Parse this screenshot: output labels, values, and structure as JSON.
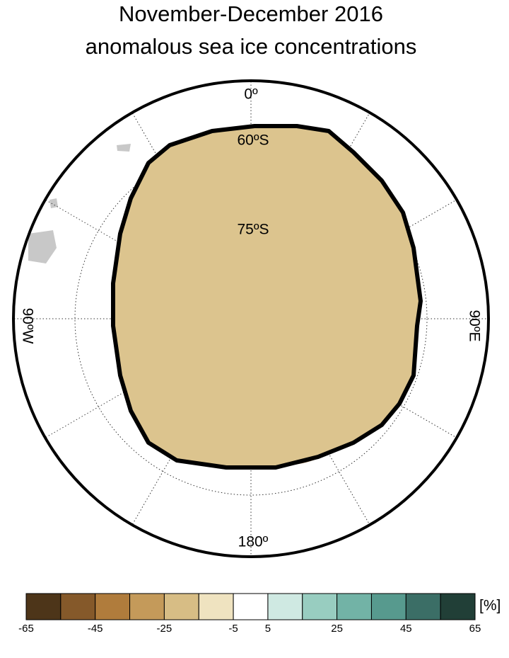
{
  "title": [
    "November-December 2016",
    "anomalous sea ice concentrations"
  ],
  "map": {
    "labels": {
      "lon_0": "0º",
      "lat_60": "60ºS",
      "lat_75": "75ºS",
      "lon_90w": "90ºW",
      "lon_90e": "90ºE",
      "lon_180": "180º"
    }
  },
  "colorbar": {
    "unit": "[%]",
    "levels": [
      -65,
      -55,
      -45,
      -35,
      -25,
      -15,
      -5,
      5,
      15,
      25,
      35,
      45,
      55,
      65
    ],
    "colors": [
      "#4d3519",
      "#85592a",
      "#b07c3c",
      "#c49a5a",
      "#d7bd85",
      "#efe3c0",
      "#ffffff",
      "#cfe9e2",
      "#98cdc0",
      "#72b3a6",
      "#579a8e",
      "#3b6e66",
      "#213f37"
    ],
    "ticks": [
      -65,
      -45,
      -25,
      -5,
      5,
      25,
      45,
      65
    ]
  }
}
